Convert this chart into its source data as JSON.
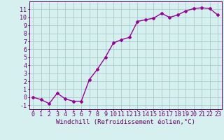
{
  "x": [
    0,
    1,
    2,
    3,
    4,
    5,
    6,
    7,
    8,
    9,
    10,
    11,
    12,
    13,
    14,
    15,
    16,
    17,
    18,
    19,
    20,
    21,
    22,
    23
  ],
  "y": [
    0,
    -0.3,
    -0.8,
    0.5,
    -0.2,
    -0.5,
    -0.5,
    2.2,
    3.5,
    5.0,
    6.8,
    7.2,
    7.5,
    9.5,
    9.7,
    9.9,
    10.5,
    10.0,
    10.3,
    10.8,
    11.1,
    11.2,
    11.1,
    10.3
  ],
  "line_color": "#990099",
  "marker": "D",
  "marker_size": 2.0,
  "bg_color": "#d6f0f0",
  "grid_color": "#aacccc",
  "xlabel": "Windchill (Refroidissement éolien,°C)",
  "xlim": [
    -0.5,
    23.5
  ],
  "ylim": [
    -1.5,
    12.0
  ],
  "xticks": [
    0,
    1,
    2,
    3,
    4,
    5,
    6,
    7,
    8,
    9,
    10,
    11,
    12,
    13,
    14,
    15,
    16,
    17,
    18,
    19,
    20,
    21,
    22,
    23
  ],
  "yticks": [
    -1,
    0,
    1,
    2,
    3,
    4,
    5,
    6,
    7,
    8,
    9,
    10,
    11
  ],
  "axis_color": "#660066",
  "tick_color": "#660066",
  "xlabel_color": "#660066",
  "xlabel_fontsize": 6.5,
  "tick_fontsize": 6.0,
  "line_width": 1.0
}
